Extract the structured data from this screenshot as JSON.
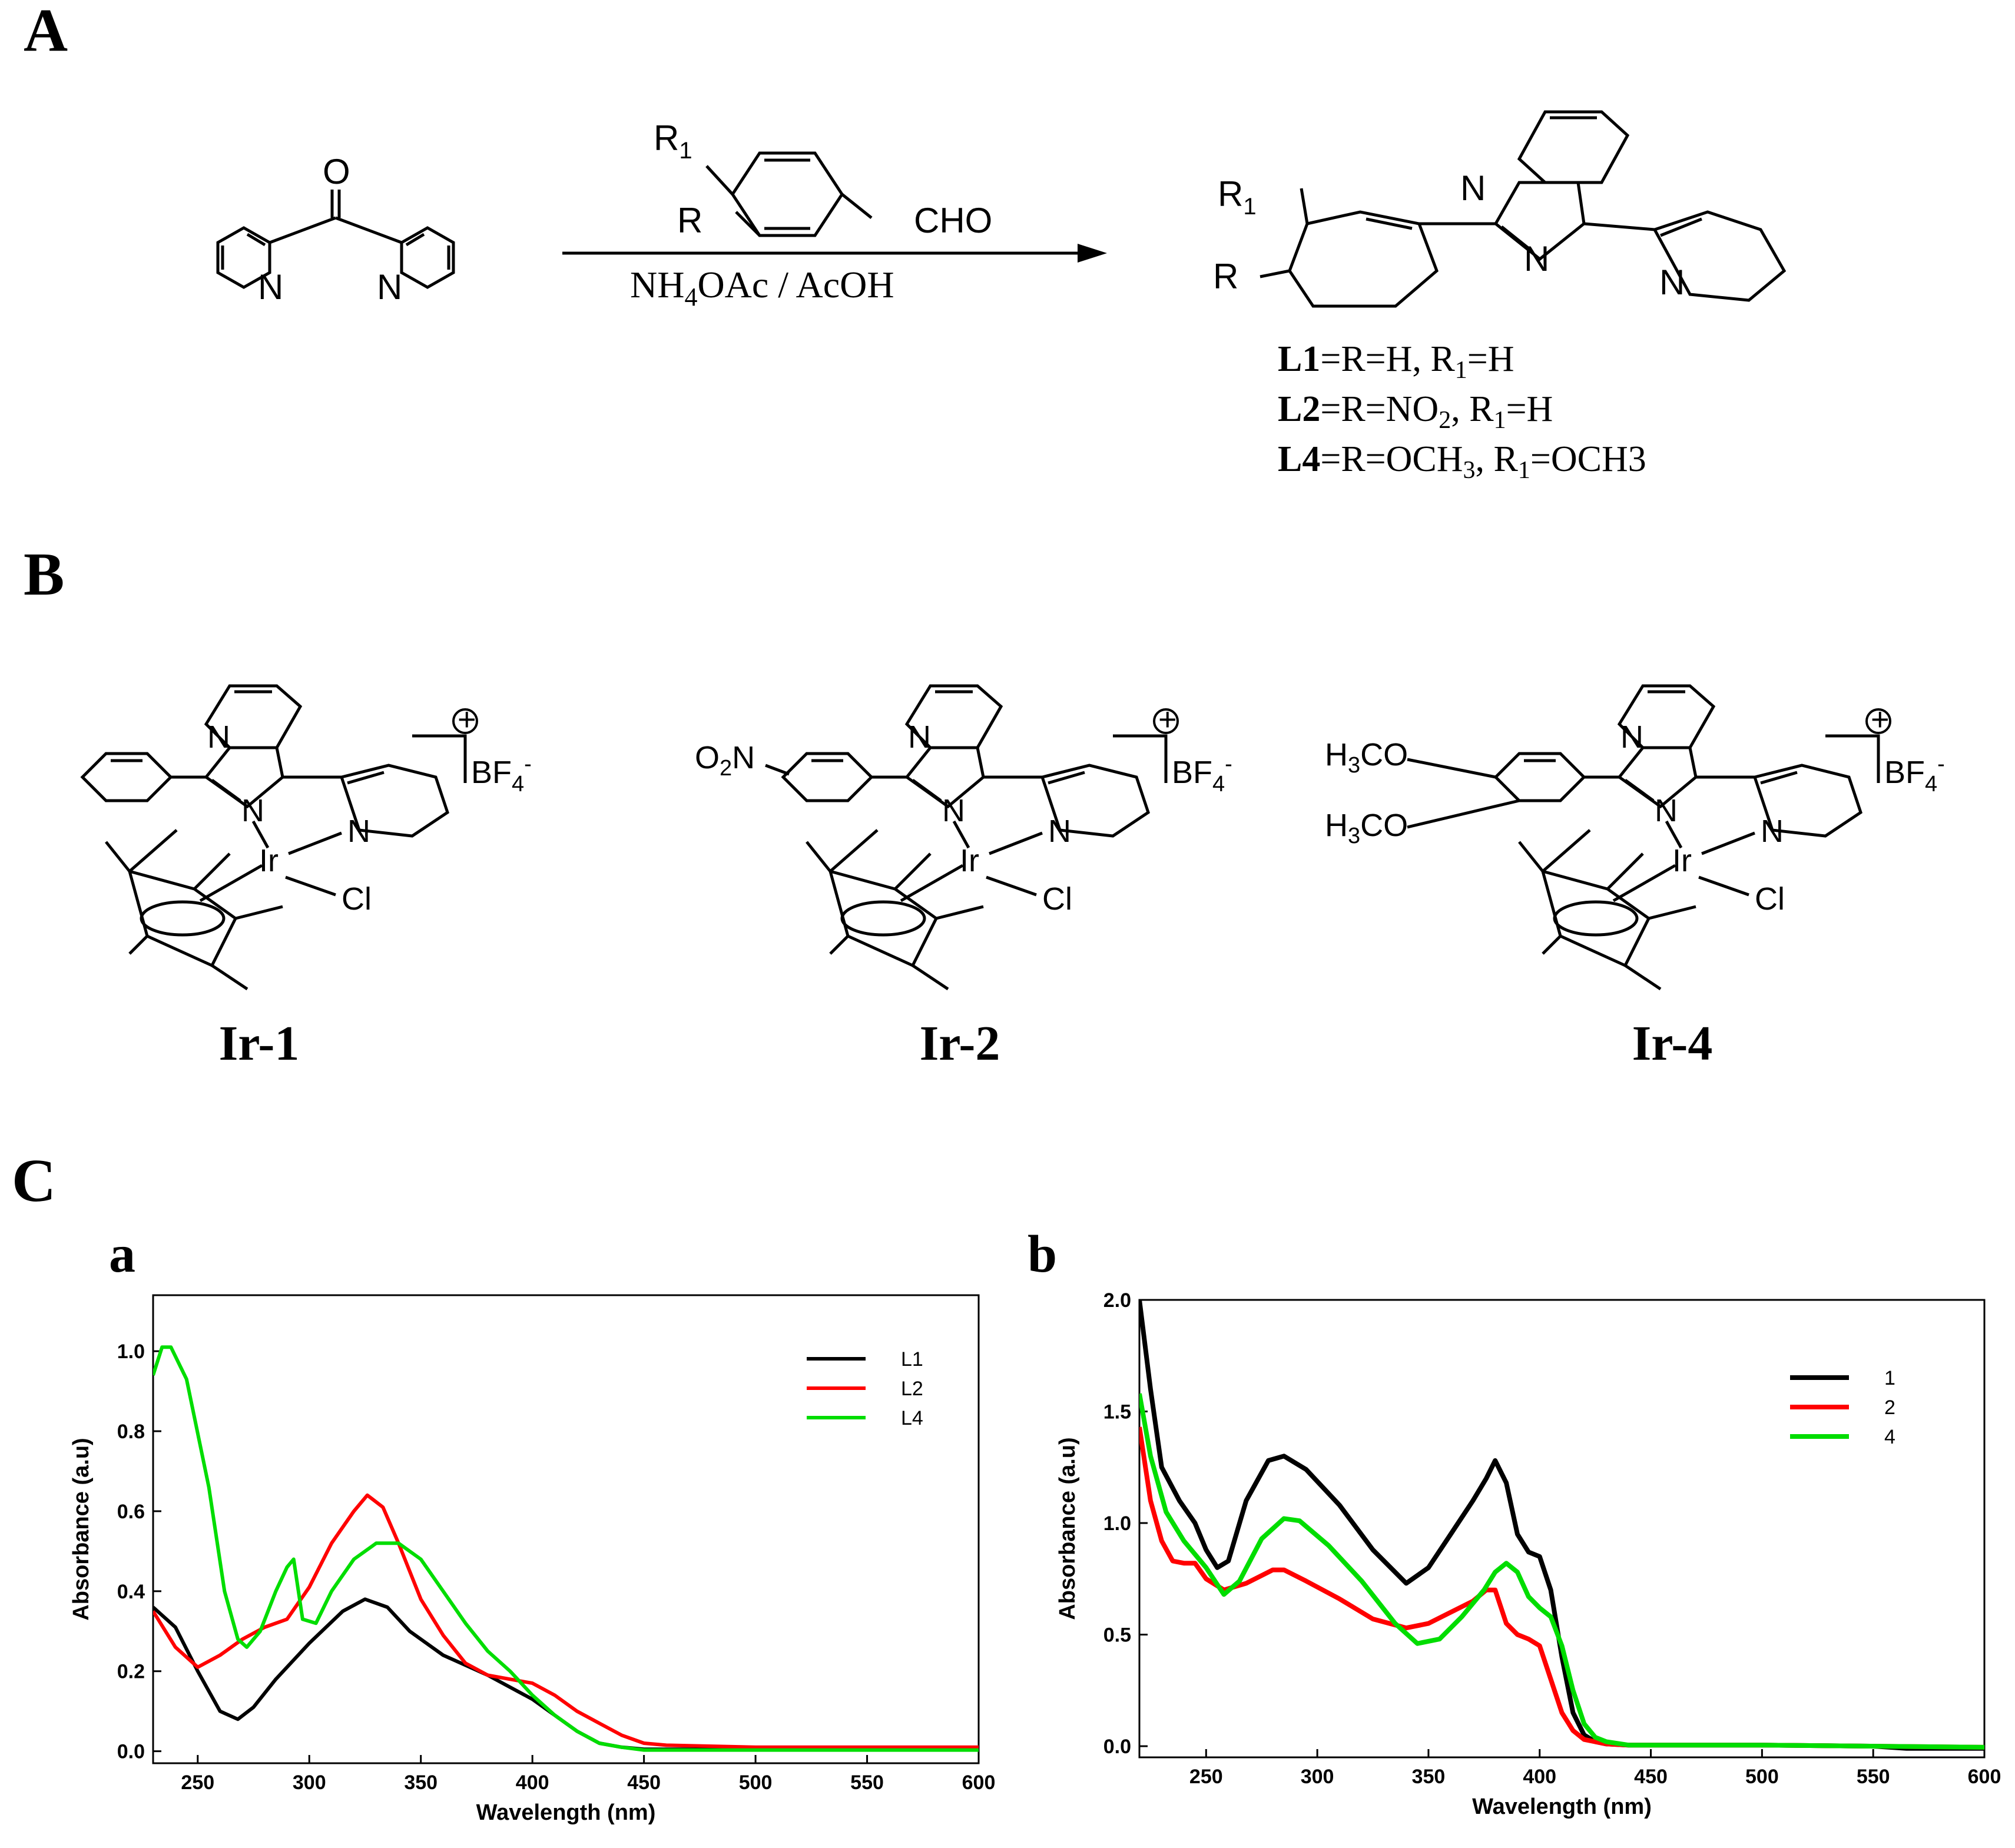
{
  "panels": {
    "A": "A",
    "B": "B",
    "C": "C",
    "a": "a",
    "b": "b"
  },
  "scheme": {
    "reagent_r1": "R",
    "reagent_r1_sub": "1",
    "reagent_r": "R",
    "reagent_cho": "CHO",
    "conditions_pre": "NH",
    "conditions_sub": "4",
    "conditions_post": "OAc / AcOH",
    "product_r1": "R",
    "product_r1_sub": "1",
    "product_r": "R",
    "ligand_defs": [
      {
        "name": "L1",
        "text": "=R=H, R",
        "sub1": "1",
        "text2": "=H",
        "sub2": "",
        "text3": ""
      },
      {
        "name": "L2",
        "text": "=R=NO",
        "sub1": "2",
        "text2": ", R",
        "sub2": "1",
        "text3": "=H"
      },
      {
        "name": "L4",
        "text": "=R=OCH",
        "sub1": "3",
        "text2": ", R",
        "sub2": "1",
        "text3": "=OCH3"
      }
    ]
  },
  "complexes": {
    "counterion": "BF",
    "counterion_sub": "4",
    "counterion_sup": "-",
    "charge": "+",
    "metal": "Ir",
    "chloride": "Cl",
    "nitro": "O2N",
    "methoxy": "H3CO",
    "labels": [
      "Ir-1",
      "Ir-2",
      "Ir-4"
    ]
  },
  "chart_data": [
    {
      "id": "a",
      "type": "line",
      "xlabel": "Wavelength (nm)",
      "ylabel": "Absorbance (a.u)",
      "xlim": [
        230,
        600
      ],
      "ylim": [
        -0.03,
        1.14
      ],
      "xticks": [
        250,
        300,
        350,
        400,
        450,
        500,
        550,
        600
      ],
      "yticks": [
        0.0,
        0.2,
        0.4,
        0.6,
        0.8,
        1.0
      ],
      "ytick_labels": [
        "0.0",
        "0.2",
        "0.4",
        "0.6",
        "0.8",
        "1.0"
      ],
      "legend_position": "top-right",
      "series": [
        {
          "name": "L1",
          "color": "#000000",
          "x": [
            230,
            240,
            250,
            260,
            268,
            275,
            285,
            300,
            315,
            325,
            335,
            345,
            360,
            380,
            400,
            420,
            430,
            440,
            450,
            500,
            600
          ],
          "y": [
            0.36,
            0.31,
            0.2,
            0.1,
            0.08,
            0.11,
            0.18,
            0.27,
            0.35,
            0.38,
            0.36,
            0.3,
            0.24,
            0.19,
            0.13,
            0.05,
            0.02,
            0.01,
            0.005,
            0.005,
            0.005
          ]
        },
        {
          "name": "L2",
          "color": "#ff0000",
          "x": [
            230,
            240,
            250,
            260,
            270,
            280,
            290,
            300,
            310,
            320,
            326,
            333,
            340,
            350,
            360,
            370,
            380,
            390,
            400,
            410,
            420,
            430,
            440,
            450,
            460,
            500,
            600
          ],
          "y": [
            0.35,
            0.26,
            0.21,
            0.24,
            0.28,
            0.31,
            0.33,
            0.41,
            0.52,
            0.6,
            0.64,
            0.61,
            0.52,
            0.38,
            0.29,
            0.22,
            0.19,
            0.18,
            0.17,
            0.14,
            0.1,
            0.07,
            0.04,
            0.02,
            0.015,
            0.01,
            0.01
          ]
        },
        {
          "name": "L4",
          "color": "#00dd00",
          "x": [
            230,
            234,
            238,
            245,
            255,
            262,
            268,
            272,
            278,
            285,
            290,
            293,
            297,
            303,
            310,
            320,
            330,
            340,
            350,
            360,
            370,
            380,
            390,
            400,
            410,
            420,
            430,
            440,
            450,
            600
          ],
          "y": [
            0.94,
            1.01,
            1.01,
            0.93,
            0.66,
            0.4,
            0.28,
            0.26,
            0.3,
            0.4,
            0.46,
            0.48,
            0.33,
            0.32,
            0.4,
            0.48,
            0.52,
            0.52,
            0.48,
            0.4,
            0.32,
            0.25,
            0.2,
            0.14,
            0.09,
            0.05,
            0.02,
            0.01,
            0.003,
            0.003
          ]
        }
      ]
    },
    {
      "id": "b",
      "type": "line",
      "xlabel": "Wavelength (nm)",
      "ylabel": "Absorbance (a.u)",
      "xlim": [
        220,
        600
      ],
      "ylim": [
        -0.05,
        2.0
      ],
      "xticks": [
        250,
        300,
        350,
        400,
        450,
        500,
        550,
        600
      ],
      "yticks": [
        0.0,
        0.5,
        1.0,
        1.5,
        2.0
      ],
      "ytick_labels": [
        "0.0",
        "0.5",
        "1.0",
        "1.5",
        "2.0"
      ],
      "legend_position": "top-right",
      "series": [
        {
          "name": "1",
          "color": "#000000",
          "x": [
            220,
            225,
            230,
            238,
            245,
            250,
            255,
            260,
            268,
            278,
            285,
            295,
            310,
            325,
            340,
            350,
            360,
            370,
            376,
            380,
            385,
            390,
            395,
            400,
            405,
            410,
            415,
            420,
            425,
            430,
            440,
            450,
            500,
            550,
            565,
            600
          ],
          "y": [
            2.0,
            1.6,
            1.25,
            1.1,
            1.0,
            0.88,
            0.8,
            0.83,
            1.1,
            1.28,
            1.3,
            1.24,
            1.08,
            0.88,
            0.73,
            0.8,
            0.95,
            1.1,
            1.2,
            1.28,
            1.18,
            0.95,
            0.87,
            0.85,
            0.7,
            0.4,
            0.15,
            0.05,
            0.02,
            0.01,
            0.005,
            0.005,
            0.005,
            0.0,
            -0.01,
            -0.01
          ]
        },
        {
          "name": "2",
          "color": "#ff0000",
          "x": [
            220,
            225,
            230,
            235,
            240,
            245,
            250,
            258,
            268,
            280,
            285,
            295,
            310,
            325,
            340,
            350,
            360,
            370,
            376,
            380,
            385,
            390,
            395,
            400,
            405,
            410,
            415,
            420,
            430,
            440,
            450,
            500,
            600
          ],
          "y": [
            1.43,
            1.1,
            0.92,
            0.83,
            0.82,
            0.82,
            0.75,
            0.7,
            0.73,
            0.79,
            0.79,
            0.74,
            0.66,
            0.57,
            0.53,
            0.55,
            0.6,
            0.65,
            0.7,
            0.7,
            0.55,
            0.5,
            0.48,
            0.45,
            0.3,
            0.15,
            0.07,
            0.03,
            0.01,
            0.005,
            0.005,
            0.005,
            -0.005
          ]
        },
        {
          "name": "4",
          "color": "#00dd00",
          "x": [
            220,
            225,
            232,
            240,
            250,
            258,
            265,
            275,
            285,
            292,
            305,
            320,
            335,
            345,
            355,
            365,
            375,
            380,
            385,
            390,
            395,
            400,
            405,
            410,
            415,
            420,
            425,
            430,
            440,
            450,
            500,
            600
          ],
          "y": [
            1.58,
            1.3,
            1.05,
            0.92,
            0.8,
            0.68,
            0.74,
            0.93,
            1.02,
            1.01,
            0.9,
            0.74,
            0.55,
            0.46,
            0.48,
            0.58,
            0.7,
            0.78,
            0.82,
            0.78,
            0.67,
            0.62,
            0.58,
            0.45,
            0.25,
            0.1,
            0.04,
            0.02,
            0.005,
            0.005,
            0.005,
            -0.005
          ]
        }
      ]
    }
  ]
}
